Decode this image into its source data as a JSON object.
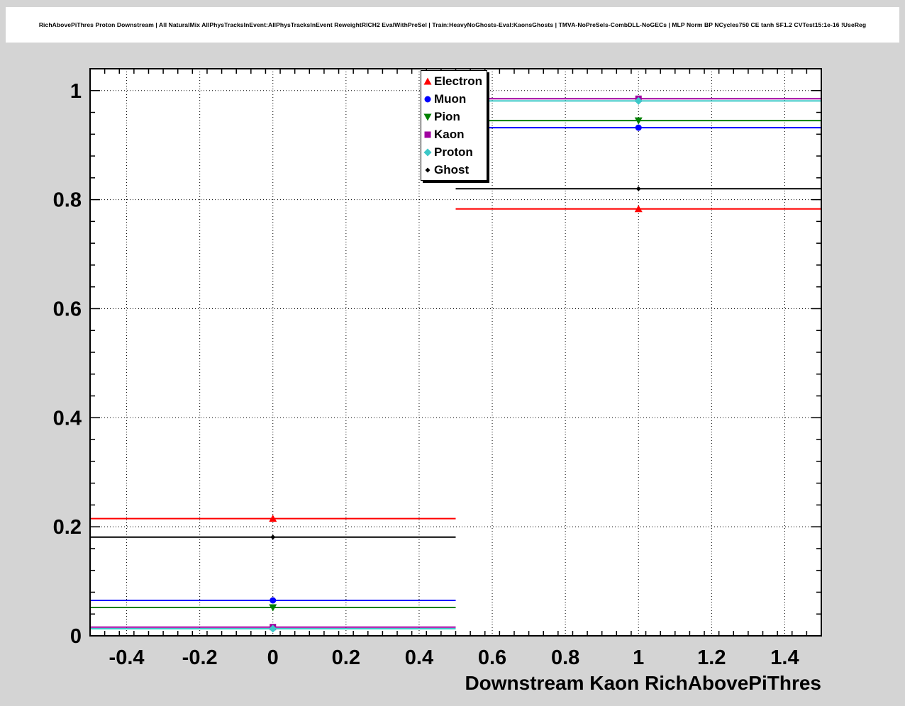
{
  "header": {
    "title": "RichAbovePiThres Proton Downstream | All NaturalMix AllPhysTracksInEvent:AllPhysTracksInEvent ReweightRICH2 EvalWithPreSel | Train:HeavyNoGhosts-Eval:KaonsGhosts | TMVA-NoPreSels-CombDLL-NoGECs | MLP Norm BP NCycles750 CE tanh SF1.2 CVTest15:1e-16 !UseReg"
  },
  "chart_data": {
    "type": "scatter",
    "title": "RichAbovePiThres Proton Downstream | All NaturalMix AllPhysTracksInEvent:AllPhysTracksInEvent ReweightRICH2 EvalWithPreSel | Train:HeavyNoGhosts-Eval:KaonsGhosts | TMVA-NoPreSels-CombDLL-NoGECs | MLP Norm BP NCycles750 CE tanh SF1.2 CVTest15:1e-16 !UseReg",
    "xlabel": "Downstream Kaon RichAbovePiThres",
    "ylabel": "",
    "xlim": [
      -0.5,
      1.5
    ],
    "ylim": [
      0,
      1.04
    ],
    "grid": true,
    "grid_style": "dotted",
    "x_ticks": [
      -0.4,
      -0.2,
      0,
      0.2,
      0.4,
      0.6,
      0.8,
      1,
      1.2,
      1.4
    ],
    "x_tick_labels": [
      "-0.4",
      "-0.2",
      "0",
      "0.2",
      "0.4",
      "0.6",
      "0.8",
      "1",
      "1.2",
      "1.4"
    ],
    "y_ticks": [
      0,
      0.2,
      0.4,
      0.6,
      0.8,
      1
    ],
    "y_tick_labels": [
      "0",
      "0.2",
      "0.4",
      "0.6",
      "0.8",
      "1"
    ],
    "minor_tick_step": 0.04,
    "bins": [
      {
        "center": 0,
        "low": -0.5,
        "high": 0.5
      },
      {
        "center": 1,
        "low": 0.5,
        "high": 1.5
      }
    ],
    "series": [
      {
        "name": "Electron",
        "color": "#ff0000",
        "marker": "triangle-up",
        "values": [
          0.215,
          0.783
        ],
        "errors": [
          0.004,
          0.004
        ]
      },
      {
        "name": "Muon",
        "color": "#0000ff",
        "marker": "circle",
        "values": [
          0.065,
          0.932
        ],
        "errors": [
          0.004,
          0.004
        ]
      },
      {
        "name": "Pion",
        "color": "#008000",
        "marker": "triangle-down",
        "values": [
          0.052,
          0.945
        ],
        "errors": [
          0.003,
          0.003
        ]
      },
      {
        "name": "Kaon",
        "color": "#a000a0",
        "marker": "square",
        "values": [
          0.016,
          0.985
        ],
        "errors": [
          0.002,
          0.002
        ]
      },
      {
        "name": "Proton",
        "color": "#3cc8c8",
        "marker": "diamond",
        "values": [
          0.013,
          0.981
        ],
        "errors": [
          0.002,
          0.002
        ]
      },
      {
        "name": "Ghost",
        "color": "#000000",
        "marker": "small-diamond",
        "values": [
          0.181,
          0.82
        ],
        "errors": [
          0.003,
          0.003
        ]
      }
    ],
    "legend_position": "top-center"
  }
}
